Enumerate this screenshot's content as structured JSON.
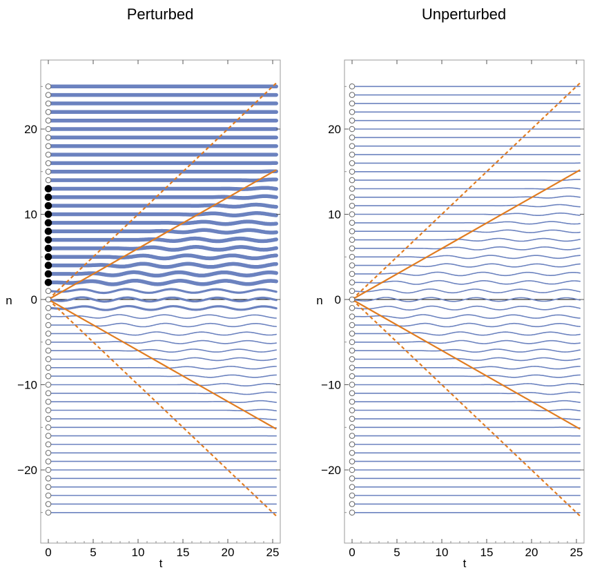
{
  "chart_data": [
    {
      "type": "line",
      "title": "Perturbed",
      "xlabel": "t",
      "ylabel": "n",
      "xlim": [
        -1,
        26
      ],
      "ylim": [
        -28,
        28.5
      ],
      "xticks": [
        0,
        5,
        10,
        15,
        20,
        25
      ],
      "xtick_labels": [
        "0",
        "5",
        "10",
        "15",
        "20",
        "25"
      ],
      "yticks": [
        -20,
        -10,
        0,
        10,
        20
      ],
      "ytick_labels": [
        "−20",
        "−10",
        "0",
        "10",
        "20"
      ],
      "sites": {
        "n_min": -25,
        "n_max": 25,
        "filled_sites": [
          2,
          3,
          4,
          5,
          6,
          7,
          8,
          9,
          10,
          11,
          12,
          13
        ]
      },
      "series": [
        {
          "name": "light cone (solid)",
          "style": "solid",
          "color": "#e07b1f",
          "x": [
            0,
            25.4
          ],
          "y_upper": [
            0,
            15.2
          ],
          "y_lower": [
            0,
            -15.2
          ]
        },
        {
          "name": "light cone (dashed)",
          "style": "dashed",
          "color": "#e07b1f",
          "x": [
            0,
            25.4
          ],
          "y_upper": [
            0,
            25.4
          ],
          "y_lower": [
            0,
            -25.4
          ]
        }
      ],
      "site_line_color": "#6b82bf"
    },
    {
      "type": "line",
      "title": "Unperturbed",
      "xlabel": "t",
      "ylabel": "n",
      "xlim": [
        -1,
        26
      ],
      "ylim": [
        -28,
        28.5
      ],
      "xticks": [
        0,
        5,
        10,
        15,
        20,
        25
      ],
      "xtick_labels": [
        "0",
        "5",
        "10",
        "15",
        "20",
        "25"
      ],
      "yticks": [
        -20,
        -10,
        0,
        10,
        20
      ],
      "ytick_labels": [
        "−20",
        "−10",
        "0",
        "10",
        "20"
      ],
      "sites": {
        "n_min": -25,
        "n_max": 25,
        "filled_sites": []
      },
      "series": [
        {
          "name": "light cone (solid)",
          "style": "solid",
          "color": "#e07b1f",
          "x": [
            0,
            25.4
          ],
          "y_upper": [
            0,
            15.2
          ],
          "y_lower": [
            0,
            -15.2
          ]
        },
        {
          "name": "light cone (dashed)",
          "style": "dashed",
          "color": "#e07b1f",
          "x": [
            0,
            25.4
          ],
          "y_upper": [
            0,
            25.4
          ],
          "y_lower": [
            0,
            -25.4
          ]
        }
      ],
      "site_line_color": "#6b82bf"
    }
  ]
}
